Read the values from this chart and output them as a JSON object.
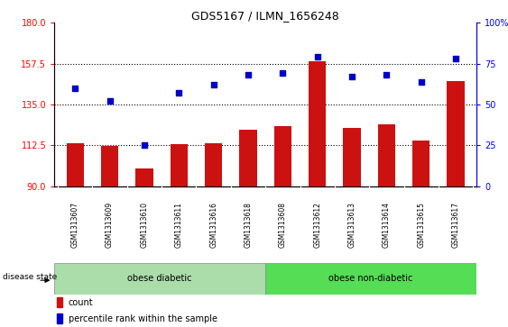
{
  "title": "GDS5167 / ILMN_1656248",
  "samples": [
    "GSM1313607",
    "GSM1313609",
    "GSM1313610",
    "GSM1313611",
    "GSM1313616",
    "GSM1313618",
    "GSM1313608",
    "GSM1313612",
    "GSM1313613",
    "GSM1313614",
    "GSM1313615",
    "GSM1313617"
  ],
  "bar_values": [
    113.5,
    112.0,
    100.0,
    113.0,
    113.5,
    121.0,
    123.0,
    158.5,
    122.0,
    124.0,
    115.0,
    148.0
  ],
  "dot_values": [
    60,
    52,
    25,
    57,
    62,
    68,
    69,
    79,
    67,
    68,
    64,
    78
  ],
  "ylim_left": [
    90,
    180
  ],
  "ylim_right": [
    0,
    100
  ],
  "yticks_left": [
    90,
    112.5,
    135,
    157.5,
    180
  ],
  "yticks_right": [
    0,
    25,
    50,
    75,
    100
  ],
  "group1_label": "obese diabetic",
  "group2_label": "obese non-diabetic",
  "group1_count": 6,
  "group2_count": 6,
  "disease_state_label": "disease state",
  "bar_color": "#cc1111",
  "dot_color": "#0000cc",
  "tick_bg": "#cccccc",
  "group1_bg": "#aaddaa",
  "group2_bg": "#55dd55",
  "legend_count_label": "count",
  "legend_pct_label": "percentile rank within the sample",
  "fig_width": 5.63,
  "fig_height": 3.63,
  "dpi": 100
}
